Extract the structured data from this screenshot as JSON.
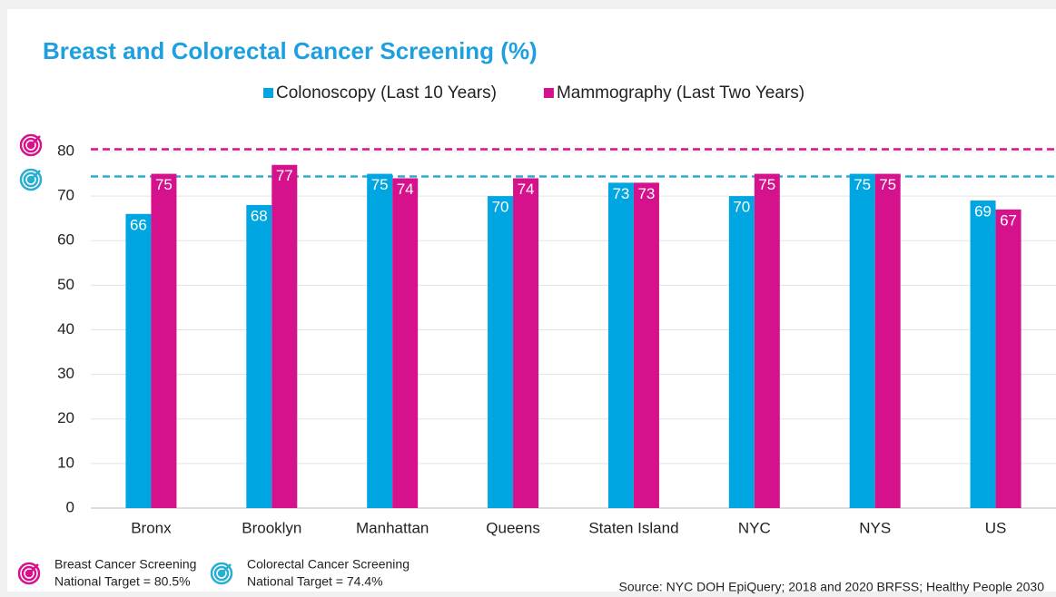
{
  "chart_data": {
    "type": "bar",
    "title": "Breast and Colorectal Cancer Screening (%)",
    "categories": [
      "Bronx",
      "Brooklyn",
      "Manhattan",
      "Queens",
      "Staten Island",
      "NYC",
      "NYS",
      "US"
    ],
    "series": [
      {
        "name": "Colonoscopy (Last 10 Years)",
        "color": "#00a6e2",
        "values": [
          66,
          68,
          75,
          70,
          73,
          70,
          75,
          69
        ]
      },
      {
        "name": "Mammography (Last Two Years)",
        "color": "#d6118c",
        "values": [
          75,
          77,
          74,
          74,
          73,
          75,
          75,
          67
        ]
      }
    ],
    "ylim": [
      0,
      80
    ],
    "yticks": [
      0,
      10,
      20,
      30,
      40,
      50,
      60,
      70,
      80
    ],
    "grid": true,
    "targets": [
      {
        "label": "Breast Cancer Screening",
        "text": "National Target = 80.5%",
        "value": 80.5,
        "color": "#d6118c"
      },
      {
        "label": "Colorectal Cancer Screening",
        "text": "National Target = 74.4%",
        "value": 74.4,
        "color": "#2aaed0"
      }
    ],
    "source": "Source: NYC DOH EpiQuery; 2018 and 2020 BRFSS; Healthy People 2030"
  }
}
